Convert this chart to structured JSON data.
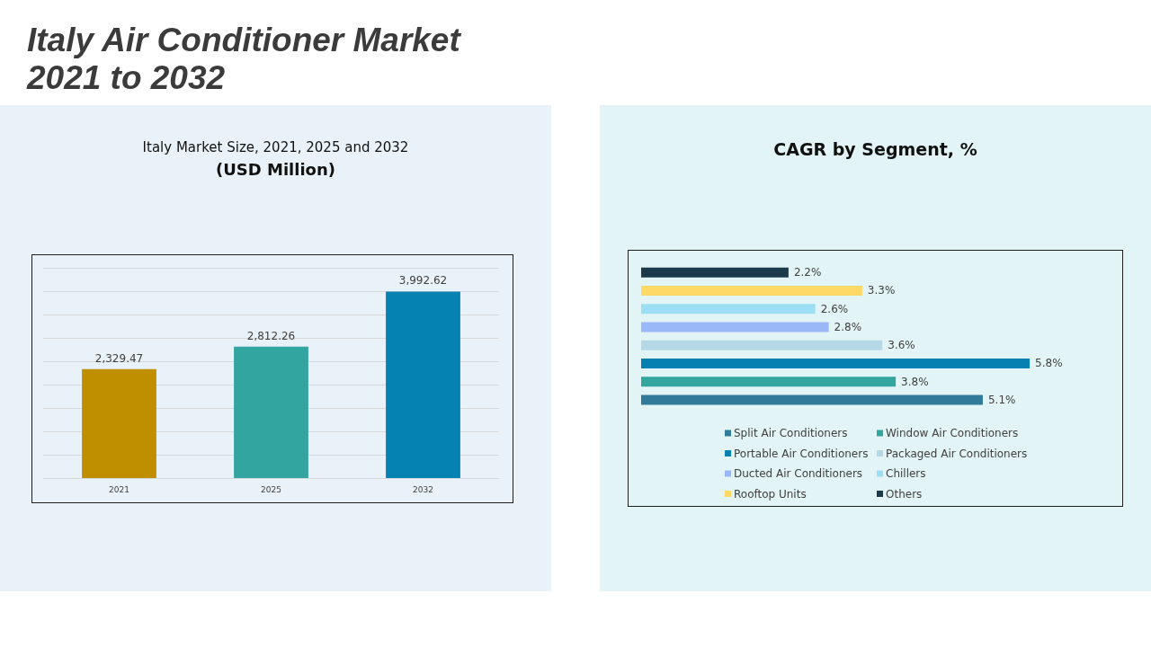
{
  "chart_data": [
    {
      "type": "other",
      "title": "Italy Air Conditioner Market 2021 to 2032"
    },
    {
      "type": "bar",
      "title": "Italy Market Size, 2021, 2025 and 2032",
      "subtitle": "(USD Million)",
      "categories": [
        "2021",
        "2025",
        "2032"
      ],
      "values": [
        2329.47,
        2812.26,
        3992.62
      ],
      "colors": [
        "#bf8f00",
        "#33a5a1",
        "#0682b2"
      ],
      "value_labels": [
        "2,329.47",
        "2,812.26",
        "3,992.62"
      ],
      "ylim": [
        0,
        4500
      ],
      "yticks": [
        {
          "value": 0,
          "label": null
        },
        {
          "value": 500,
          "label": null
        },
        {
          "value": 1000,
          "label": null
        },
        {
          "value": 1500,
          "label": null
        },
        {
          "value": 2000,
          "label": null
        },
        {
          "value": 2500,
          "label": null
        },
        {
          "value": 3000,
          "label": null
        },
        {
          "value": 3500,
          "label": null
        },
        {
          "value": 4000,
          "label": null
        },
        {
          "value": 4500,
          "label": null
        }
      ],
      "grid": "y",
      "tick_labels": "x"
    },
    {
      "type": "bar",
      "title": "CAGR by Segment, %",
      "orientation": "horizontal",
      "stacked": true,
      "categories": [
        null,
        null,
        null,
        null,
        null,
        null,
        null,
        null
      ],
      "series": [
        {
          "name": "Split Air Conditioners",
          "color": "#317a99",
          "values": [
            null,
            null,
            null,
            null,
            null,
            null,
            null,
            5.1
          ],
          "value_labels": [
            null,
            null,
            null,
            null,
            null,
            null,
            null,
            "5.1%"
          ]
        },
        {
          "name": "Window Air Conditioners",
          "color": "#33a59f",
          "values": [
            null,
            null,
            null,
            null,
            null,
            null,
            3.8,
            null
          ],
          "value_labels": [
            null,
            null,
            null,
            null,
            null,
            null,
            "3.8%",
            null
          ]
        },
        {
          "name": "Portable Air Conditioners",
          "color": "#0580b0",
          "values": [
            null,
            null,
            null,
            null,
            null,
            5.8,
            null,
            null
          ],
          "value_labels": [
            null,
            null,
            null,
            null,
            null,
            "5.8%",
            null,
            null
          ]
        },
        {
          "name": "Packaged Air Conditioners",
          "color": "#b4d8e6",
          "values": [
            null,
            null,
            null,
            null,
            3.6,
            null,
            null,
            null
          ],
          "value_labels": [
            null,
            null,
            null,
            null,
            "3.6%",
            null,
            null,
            null
          ]
        },
        {
          "name": "Ducted Air Conditioners",
          "color": "#9ab8f8",
          "values": [
            null,
            null,
            null,
            2.8,
            null,
            null,
            null,
            null
          ],
          "value_labels": [
            null,
            null,
            null,
            "2.8%",
            null,
            null,
            null,
            null
          ]
        },
        {
          "name": "Chillers",
          "color": "#9cdff5",
          "values": [
            null,
            null,
            2.6,
            null,
            null,
            null,
            null,
            null
          ],
          "value_labels": [
            null,
            null,
            "2.6%",
            null,
            null,
            null,
            null,
            null
          ]
        },
        {
          "name": "Rooftop Units",
          "color": "#ffd966",
          "values": [
            null,
            3.3,
            null,
            null,
            null,
            null,
            null,
            null
          ],
          "value_labels": [
            null,
            "3.3%",
            null,
            null,
            null,
            null,
            null,
            null
          ]
        },
        {
          "name": "Others",
          "color": "#1b3a4b",
          "values": [
            2.2,
            null,
            null,
            null,
            null,
            null,
            null,
            null
          ],
          "value_labels": [
            "2.2%",
            null,
            null,
            null,
            null,
            null,
            null,
            null
          ]
        }
      ],
      "legend": "bottom",
      "tick_labels": false
    }
  ]
}
